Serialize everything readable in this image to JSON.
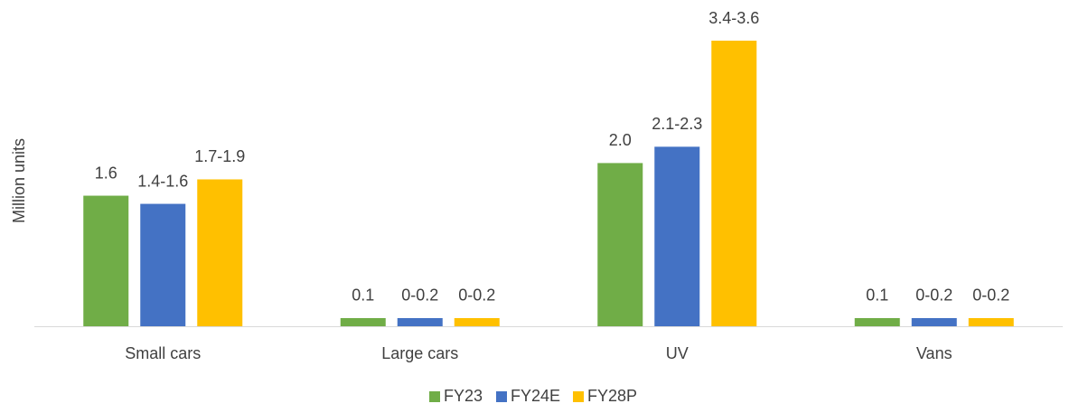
{
  "chart_data": {
    "type": "bar",
    "y_label": "Million units",
    "categories": [
      "Small cars",
      "Large cars",
      "UV",
      "Vans"
    ],
    "series": [
      {
        "name": "FY23",
        "color": "#70ad47",
        "values": [
          1.6,
          0.1,
          2.0,
          0.1
        ],
        "value_labels": [
          "1.6",
          "0.1",
          "2.0",
          "0.1"
        ]
      },
      {
        "name": "FY24E",
        "color": "#4472c4",
        "values": [
          1.5,
          0.1,
          2.2,
          0.1
        ],
        "value_labels": [
          "1.4-1.6",
          "0-0.2",
          "2.1-2.3",
          "0-0.2"
        ]
      },
      {
        "name": "FY28P",
        "color": "#ffc000",
        "values": [
          1.8,
          0.1,
          3.5,
          0.1
        ],
        "value_labels": [
          "1.7-1.9",
          "0-0.2",
          "3.4-3.6",
          "0-0.2"
        ]
      }
    ],
    "legend": "bottom"
  }
}
